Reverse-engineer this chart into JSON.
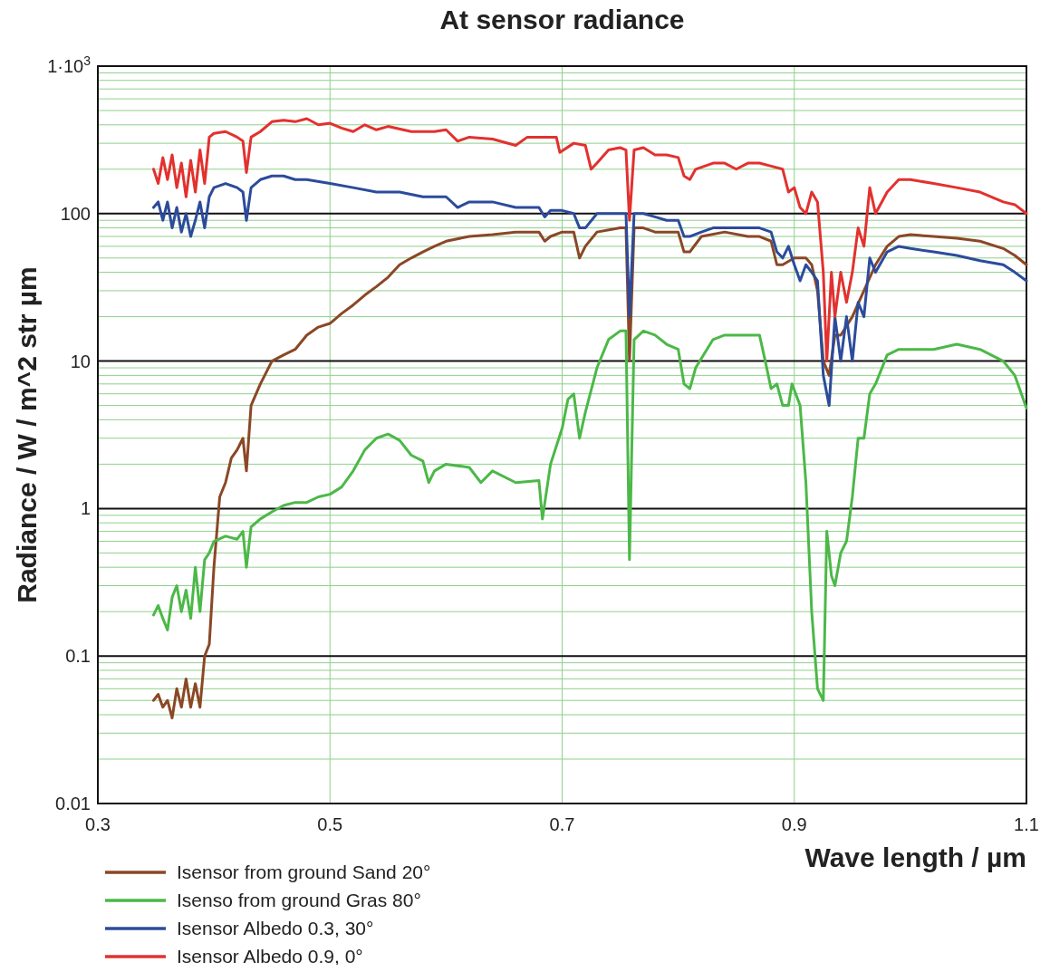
{
  "chart_data": {
    "type": "line",
    "title": "At sensor radiance",
    "xlabel": "Wave length / µm",
    "ylabel": "Radiance / W / m^2 str µm",
    "xlim": [
      0.3,
      1.1
    ],
    "xticks": [
      0.3,
      0.5,
      0.7,
      0.9,
      1.1
    ],
    "ylim": [
      0.01,
      1000
    ],
    "yticks": [
      0.01,
      0.1,
      1,
      10,
      100,
      {
        "value": 1000,
        "label": "1·10$^{3}$"
      }
    ],
    "log": "y",
    "grid": true,
    "legend": "bottom left",
    "line_style": "solid",
    "marker": "none",
    "series": [
      {
        "name": "Isensor from ground Sand 20°",
        "color": "#8b4726",
        "x": [
          0.348,
          0.352,
          0.356,
          0.36,
          0.364,
          0.368,
          0.372,
          0.376,
          0.38,
          0.384,
          0.388,
          0.392,
          0.396,
          0.4,
          0.405,
          0.41,
          0.415,
          0.42,
          0.425,
          0.428,
          0.432,
          0.44,
          0.45,
          0.46,
          0.47,
          0.48,
          0.49,
          0.5,
          0.51,
          0.52,
          0.53,
          0.54,
          0.55,
          0.56,
          0.57,
          0.58,
          0.59,
          0.6,
          0.62,
          0.64,
          0.66,
          0.68,
          0.685,
          0.69,
          0.7,
          0.71,
          0.715,
          0.72,
          0.73,
          0.75,
          0.755,
          0.758,
          0.762,
          0.77,
          0.78,
          0.79,
          0.8,
          0.805,
          0.81,
          0.82,
          0.84,
          0.86,
          0.87,
          0.88,
          0.885,
          0.89,
          0.9,
          0.91,
          0.915,
          0.92,
          0.925,
          0.93,
          0.935,
          0.94,
          0.95,
          0.96,
          0.97,
          0.98,
          0.99,
          1.0,
          1.02,
          1.04,
          1.06,
          1.08,
          1.09,
          1.1
        ],
        "values": [
          0.05,
          0.055,
          0.045,
          0.05,
          0.038,
          0.06,
          0.045,
          0.07,
          0.045,
          0.065,
          0.045,
          0.1,
          0.12,
          0.4,
          1.2,
          1.5,
          2.2,
          2.5,
          3,
          1.8,
          5,
          7,
          10,
          11,
          12,
          15,
          17,
          18,
          21,
          24,
          28,
          32,
          37,
          45,
          50,
          55,
          60,
          65,
          70,
          72,
          75,
          75,
          65,
          70,
          75,
          75,
          50,
          60,
          75,
          80,
          80,
          10,
          80,
          80,
          75,
          75,
          75,
          55,
          55,
          70,
          75,
          70,
          70,
          65,
          45,
          45,
          50,
          50,
          45,
          30,
          10,
          8,
          15,
          15,
          20,
          30,
          45,
          60,
          70,
          72,
          70,
          68,
          65,
          58,
          52,
          45
        ]
      },
      {
        "name": "Isenso from ground Gras 80°",
        "color": "#4cb848",
        "x": [
          0.348,
          0.352,
          0.356,
          0.36,
          0.364,
          0.368,
          0.372,
          0.376,
          0.38,
          0.384,
          0.388,
          0.392,
          0.396,
          0.4,
          0.41,
          0.42,
          0.425,
          0.428,
          0.432,
          0.44,
          0.45,
          0.46,
          0.47,
          0.48,
          0.49,
          0.5,
          0.51,
          0.52,
          0.53,
          0.54,
          0.55,
          0.56,
          0.57,
          0.58,
          0.585,
          0.59,
          0.6,
          0.62,
          0.63,
          0.64,
          0.66,
          0.68,
          0.683,
          0.69,
          0.7,
          0.705,
          0.71,
          0.715,
          0.72,
          0.73,
          0.74,
          0.75,
          0.755,
          0.758,
          0.762,
          0.77,
          0.78,
          0.79,
          0.8,
          0.805,
          0.81,
          0.815,
          0.83,
          0.84,
          0.86,
          0.87,
          0.875,
          0.88,
          0.885,
          0.89,
          0.895,
          0.898,
          0.905,
          0.91,
          0.915,
          0.92,
          0.925,
          0.928,
          0.932,
          0.935,
          0.94,
          0.945,
          0.95,
          0.955,
          0.96,
          0.965,
          0.97,
          0.98,
          0.99,
          1.0,
          1.02,
          1.04,
          1.06,
          1.08,
          1.09,
          1.1
        ],
        "values": [
          0.19,
          0.22,
          0.18,
          0.15,
          0.25,
          0.3,
          0.2,
          0.28,
          0.18,
          0.4,
          0.2,
          0.45,
          0.5,
          0.6,
          0.65,
          0.62,
          0.7,
          0.4,
          0.75,
          0.85,
          0.95,
          1.05,
          1.1,
          1.1,
          1.2,
          1.25,
          1.4,
          1.8,
          2.5,
          3,
          3.2,
          2.9,
          2.3,
          2.1,
          1.5,
          1.8,
          2,
          1.9,
          1.5,
          1.8,
          1.5,
          1.55,
          0.85,
          2,
          3.5,
          5.5,
          6,
          3,
          4.5,
          9,
          14,
          16,
          16,
          0.45,
          14,
          16,
          15,
          13,
          12,
          7,
          6.5,
          9,
          14,
          15,
          15,
          15,
          10,
          6.5,
          7,
          5,
          5,
          7,
          5,
          1.5,
          0.2,
          0.06,
          0.05,
          0.7,
          0.35,
          0.3,
          0.5,
          0.6,
          1.2,
          3,
          3,
          6,
          7,
          11,
          12,
          12,
          12,
          13,
          12,
          10,
          8,
          4.8
        ]
      },
      {
        "name": "Isensor Albedo 0.3, 30°",
        "color": "#2c4b9b",
        "x": [
          0.348,
          0.352,
          0.356,
          0.36,
          0.364,
          0.368,
          0.372,
          0.376,
          0.38,
          0.384,
          0.388,
          0.392,
          0.396,
          0.4,
          0.41,
          0.42,
          0.425,
          0.428,
          0.432,
          0.44,
          0.45,
          0.46,
          0.47,
          0.48,
          0.5,
          0.52,
          0.54,
          0.56,
          0.58,
          0.6,
          0.61,
          0.62,
          0.64,
          0.66,
          0.68,
          0.685,
          0.69,
          0.7,
          0.71,
          0.715,
          0.72,
          0.73,
          0.75,
          0.755,
          0.758,
          0.762,
          0.77,
          0.78,
          0.79,
          0.8,
          0.805,
          0.81,
          0.82,
          0.83,
          0.85,
          0.87,
          0.88,
          0.885,
          0.89,
          0.895,
          0.9,
          0.905,
          0.91,
          0.915,
          0.92,
          0.925,
          0.93,
          0.935,
          0.94,
          0.945,
          0.95,
          0.955,
          0.96,
          0.965,
          0.97,
          0.98,
          0.99,
          1.0,
          1.02,
          1.04,
          1.06,
          1.08,
          1.09,
          1.1
        ],
        "values": [
          110,
          120,
          90,
          120,
          80,
          110,
          75,
          100,
          70,
          90,
          120,
          80,
          130,
          150,
          160,
          150,
          140,
          90,
          150,
          170,
          180,
          180,
          170,
          170,
          160,
          150,
          140,
          140,
          130,
          130,
          110,
          120,
          120,
          110,
          110,
          95,
          105,
          105,
          100,
          80,
          80,
          100,
          100,
          100,
          20,
          100,
          100,
          95,
          90,
          90,
          70,
          70,
          75,
          80,
          80,
          80,
          75,
          55,
          50,
          60,
          45,
          35,
          45,
          40,
          35,
          8,
          5,
          20,
          10,
          20,
          10,
          25,
          20,
          50,
          40,
          55,
          60,
          58,
          55,
          52,
          48,
          45,
          40,
          35
        ]
      },
      {
        "name": "Isensor Albedo 0.9, 0°",
        "color": "#e2312f",
        "x": [
          0.348,
          0.352,
          0.356,
          0.36,
          0.364,
          0.368,
          0.372,
          0.376,
          0.38,
          0.384,
          0.388,
          0.392,
          0.396,
          0.4,
          0.41,
          0.42,
          0.425,
          0.428,
          0.432,
          0.44,
          0.45,
          0.46,
          0.47,
          0.48,
          0.49,
          0.5,
          0.51,
          0.52,
          0.53,
          0.54,
          0.55,
          0.57,
          0.59,
          0.6,
          0.61,
          0.62,
          0.64,
          0.66,
          0.67,
          0.69,
          0.695,
          0.698,
          0.71,
          0.72,
          0.725,
          0.73,
          0.74,
          0.75,
          0.755,
          0.758,
          0.762,
          0.77,
          0.78,
          0.79,
          0.8,
          0.805,
          0.81,
          0.815,
          0.83,
          0.84,
          0.85,
          0.86,
          0.87,
          0.88,
          0.89,
          0.895,
          0.9,
          0.905,
          0.91,
          0.915,
          0.92,
          0.925,
          0.928,
          0.932,
          0.935,
          0.94,
          0.945,
          0.95,
          0.955,
          0.96,
          0.965,
          0.97,
          0.98,
          0.99,
          1.0,
          1.02,
          1.04,
          1.06,
          1.08,
          1.09,
          1.1
        ],
        "values": [
          200,
          160,
          240,
          170,
          250,
          150,
          220,
          130,
          230,
          140,
          270,
          160,
          330,
          350,
          360,
          330,
          310,
          190,
          330,
          360,
          420,
          430,
          420,
          440,
          400,
          410,
          380,
          360,
          400,
          370,
          390,
          360,
          360,
          370,
          310,
          330,
          320,
          290,
          330,
          330,
          330,
          260,
          300,
          290,
          200,
          220,
          270,
          280,
          270,
          90,
          270,
          280,
          250,
          250,
          240,
          180,
          170,
          200,
          220,
          220,
          200,
          220,
          220,
          210,
          200,
          140,
          150,
          110,
          100,
          140,
          120,
          40,
          10,
          40,
          20,
          40,
          25,
          40,
          80,
          60,
          150,
          100,
          140,
          170,
          170,
          160,
          150,
          140,
          120,
          115,
          100
        ]
      }
    ]
  }
}
